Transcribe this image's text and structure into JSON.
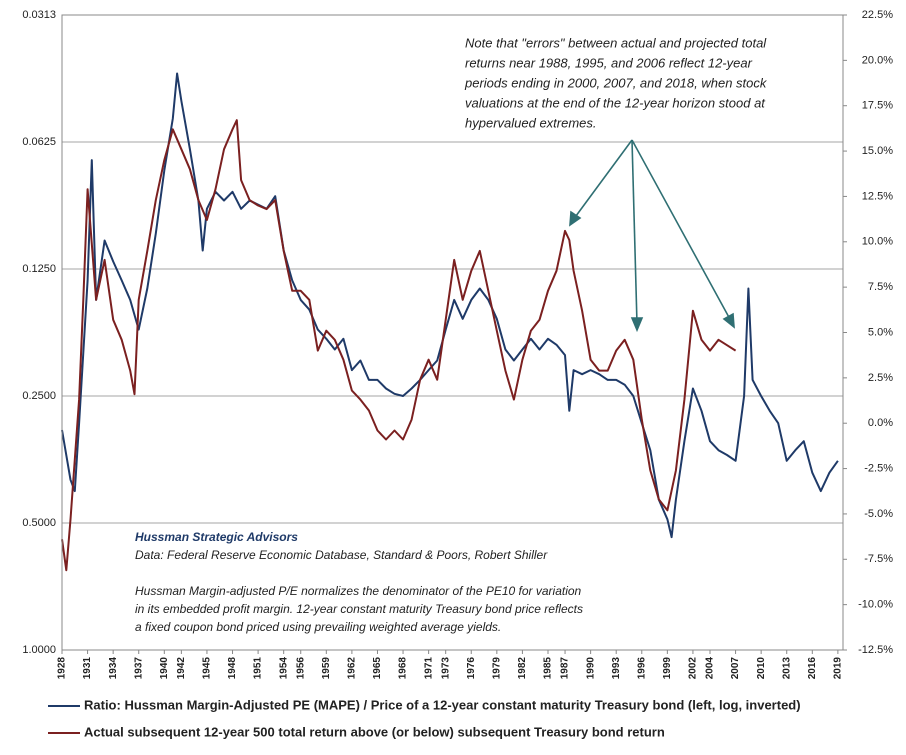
{
  "chart_data": {
    "type": "line",
    "note": [
      "Note that \"errors\" between actual and projected total",
      "returns near 1988, 1995, and 2006 reflect 12-year",
      "periods ending in 2000, 2007, and 2018, when stock",
      "valuations at the end of the 12-year horizon stood at",
      "hypervalued extremes."
    ],
    "source_title": "Hussman Strategic Advisors",
    "source": "Data: Federal Reserve Economic Database, Standard & Poors, Robert Shiller",
    "description": [
      "Hussman Margin-adjusted P/E normalizes the denominator of the PE10 for variation",
      "in its embedded profit margin. 12-year constant maturity Treasury bond price reflects",
      "a fixed coupon bond priced using prevailing weighted average  yields."
    ],
    "xlim": [
      1928,
      2019.6
    ],
    "xticks": [
      1928,
      1931,
      1934,
      1937,
      1940,
      1942,
      1945,
      1948,
      1951,
      1954,
      1956,
      1959,
      1962,
      1965,
      1968,
      1971,
      1973,
      1976,
      1979,
      1982,
      1985,
      1987,
      1990,
      1993,
      1996,
      1999,
      2002,
      2004,
      2007,
      2010,
      2013,
      2016,
      2019
    ],
    "ylim": [
      0.03125,
      1
    ],
    "ylog": true,
    "yinverted": true,
    "yticks": [
      {
        "value": 0.03125,
        "label": "0.0313"
      },
      {
        "value": 0.0625,
        "label": "0.0625"
      },
      {
        "value": 0.125,
        "label": "0.1250"
      },
      {
        "value": 0.25,
        "label": "0.2500"
      },
      {
        "value": 0.5,
        "label": "0.5000"
      },
      {
        "value": 1,
        "label": "1.0000"
      }
    ],
    "y2lim": [
      -12.5,
      22.5
    ],
    "y2ticks": [
      {
        "value": 22.5,
        "label": "22.5%"
      },
      {
        "value": 20,
        "label": "20.0%"
      },
      {
        "value": 17.5,
        "label": "17.5%"
      },
      {
        "value": 15,
        "label": "15.0%"
      },
      {
        "value": 12.5,
        "label": "12.5%"
      },
      {
        "value": 10,
        "label": "10.0%"
      },
      {
        "value": 7.5,
        "label": "7.5%"
      },
      {
        "value": 5,
        "label": "5.0%"
      },
      {
        "value": 2.5,
        "label": "2.5%"
      },
      {
        "value": 0,
        "label": "0.0%"
      },
      {
        "value": -2.5,
        "label": "-2.5%"
      },
      {
        "value": -5,
        "label": "-5.0%"
      },
      {
        "value": -7.5,
        "label": "-7.5%"
      },
      {
        "value": -10,
        "label": "-10.0%"
      },
      {
        "value": -12.5,
        "label": "-12.5%"
      }
    ],
    "grid": true,
    "series": [
      {
        "name": "Ratio: Hussman Margin-Adjusted PE (MAPE) / Price of a 12-year constant maturity Treasury bond (left, log, inverted)",
        "color": "#1f3a68",
        "axis": "y",
        "x": [
          1928,
          1929,
          1929.5,
          1930,
          1931,
          1931.5,
          1932,
          1933,
          1934,
          1935,
          1936,
          1937,
          1938,
          1939,
          1940,
          1941,
          1941.5,
          1942,
          1943,
          1944,
          1944.5,
          1945,
          1946,
          1947,
          1948,
          1949,
          1950,
          1951,
          1952,
          1953,
          1954,
          1955,
          1956,
          1957,
          1958,
          1959,
          1960,
          1961,
          1962,
          1963,
          1964,
          1965,
          1966,
          1967,
          1968,
          1969,
          1970,
          1971,
          1972,
          1973,
          1974,
          1975,
          1976,
          1977,
          1978,
          1979,
          1980,
          1981,
          1982,
          1983,
          1984,
          1985,
          1986,
          1987,
          1987.5,
          1988,
          1989,
          1990,
          1991,
          1992,
          1993,
          1994,
          1995,
          1996,
          1997,
          1998,
          1999,
          1999.5,
          2000,
          2001,
          2002,
          2003,
          2004,
          2005,
          2006,
          2007,
          2008,
          2008.5,
          2009,
          2010,
          2011,
          2012,
          2013,
          2014,
          2015,
          2016,
          2017,
          2018,
          2019
        ],
        "values": [
          0.301,
          0.395,
          0.42,
          0.29,
          0.133,
          0.069,
          0.148,
          0.107,
          0.12,
          0.133,
          0.148,
          0.174,
          0.139,
          0.103,
          0.073,
          0.055,
          0.043,
          0.05,
          0.065,
          0.086,
          0.113,
          0.09,
          0.082,
          0.086,
          0.082,
          0.09,
          0.086,
          0.088,
          0.09,
          0.084,
          0.113,
          0.133,
          0.148,
          0.156,
          0.174,
          0.183,
          0.194,
          0.183,
          0.217,
          0.206,
          0.229,
          0.229,
          0.24,
          0.247,
          0.25,
          0.24,
          0.229,
          0.217,
          0.206,
          0.174,
          0.148,
          0.164,
          0.148,
          0.139,
          0.148,
          0.164,
          0.194,
          0.206,
          0.194,
          0.183,
          0.194,
          0.183,
          0.189,
          0.2,
          0.271,
          0.217,
          0.222,
          0.217,
          0.222,
          0.229,
          0.229,
          0.235,
          0.25,
          0.29,
          0.336,
          0.44,
          0.49,
          0.54,
          0.44,
          0.32,
          0.24,
          0.271,
          0.32,
          0.336,
          0.345,
          0.356,
          0.25,
          0.139,
          0.229,
          0.25,
          0.271,
          0.29,
          0.356,
          0.336,
          0.32,
          0.38,
          0.42,
          0.38,
          0.356
        ]
      },
      {
        "name": "Actual subsequent 12-year 500 total return above (or below) subsequent  Treasury bond return",
        "color": "#7b2020",
        "axis": "y2",
        "x": [
          1928,
          1928.5,
          1929,
          1930,
          1930.5,
          1931,
          1932,
          1933,
          1934,
          1935,
          1936,
          1936.5,
          1937,
          1938,
          1939,
          1940,
          1941,
          1942,
          1943,
          1944,
          1945,
          1946,
          1947,
          1948,
          1948.5,
          1949,
          1950,
          1951,
          1952,
          1953,
          1954,
          1955,
          1956,
          1957,
          1958,
          1959,
          1960,
          1961,
          1962,
          1963,
          1964,
          1965,
          1966,
          1967,
          1968,
          1969,
          1970,
          1971,
          1972,
          1973,
          1974,
          1975,
          1976,
          1977,
          1978,
          1979,
          1980,
          1981,
          1982,
          1983,
          1984,
          1985,
          1986,
          1987,
          1987.5,
          1988,
          1989,
          1990,
          1991,
          1992,
          1993,
          1994,
          1995,
          1996,
          1997,
          1998,
          1999,
          2000,
          2001,
          2002,
          2003,
          2004,
          2005,
          2006,
          2007
        ],
        "values": [
          -6.4,
          -8.1,
          -5.3,
          1.3,
          6.8,
          12.9,
          6.8,
          9.0,
          5.7,
          4.6,
          2.9,
          1.6,
          6.8,
          9.5,
          12.3,
          14.5,
          16.2,
          15.1,
          14.0,
          12.3,
          11.2,
          12.9,
          15.1,
          16.2,
          16.7,
          13.4,
          12.3,
          12.0,
          11.8,
          12.3,
          9.5,
          7.3,
          7.3,
          6.8,
          4.0,
          5.1,
          4.6,
          3.5,
          1.8,
          1.3,
          0.7,
          -0.4,
          -0.9,
          -0.4,
          -0.9,
          0.2,
          2.4,
          3.5,
          2.4,
          5.7,
          9.0,
          6.8,
          8.4,
          9.5,
          7.3,
          5.1,
          2.9,
          1.3,
          3.5,
          5.1,
          5.7,
          7.3,
          8.4,
          10.6,
          10.1,
          8.4,
          6.2,
          3.5,
          2.9,
          2.9,
          4.0,
          4.6,
          3.5,
          0.2,
          -2.6,
          -4.2,
          -4.8,
          -2.6,
          1.3,
          6.2,
          4.6,
          4.0,
          4.6,
          4.3,
          4.0
        ]
      }
    ]
  }
}
